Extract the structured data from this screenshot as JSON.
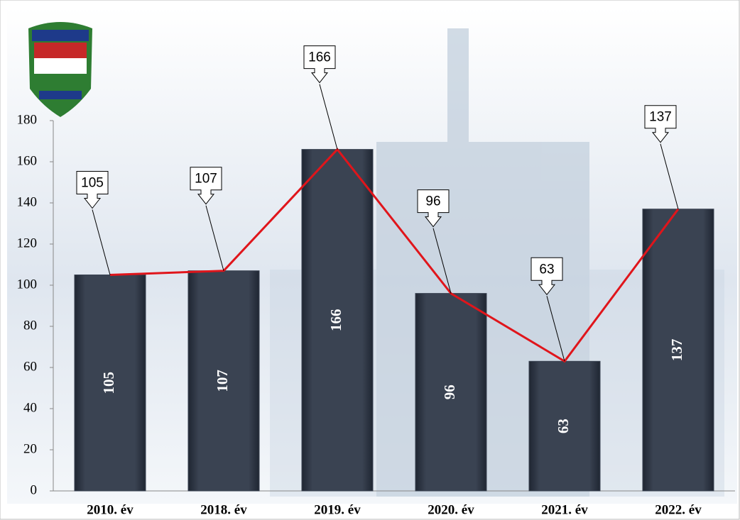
{
  "chart_data": {
    "type": "bar",
    "categories": [
      "2010. év",
      "2018. év",
      "2019. év",
      "2020. év",
      "2021. év",
      "2022. év"
    ],
    "values": [
      105,
      107,
      166,
      96,
      63,
      137
    ],
    "color": "#3a4352",
    "line_color": "#e0151b",
    "ylim": [
      0,
      180
    ],
    "yticks": [
      0,
      20,
      40,
      60,
      80,
      100,
      120,
      140,
      160,
      180
    ]
  }
}
